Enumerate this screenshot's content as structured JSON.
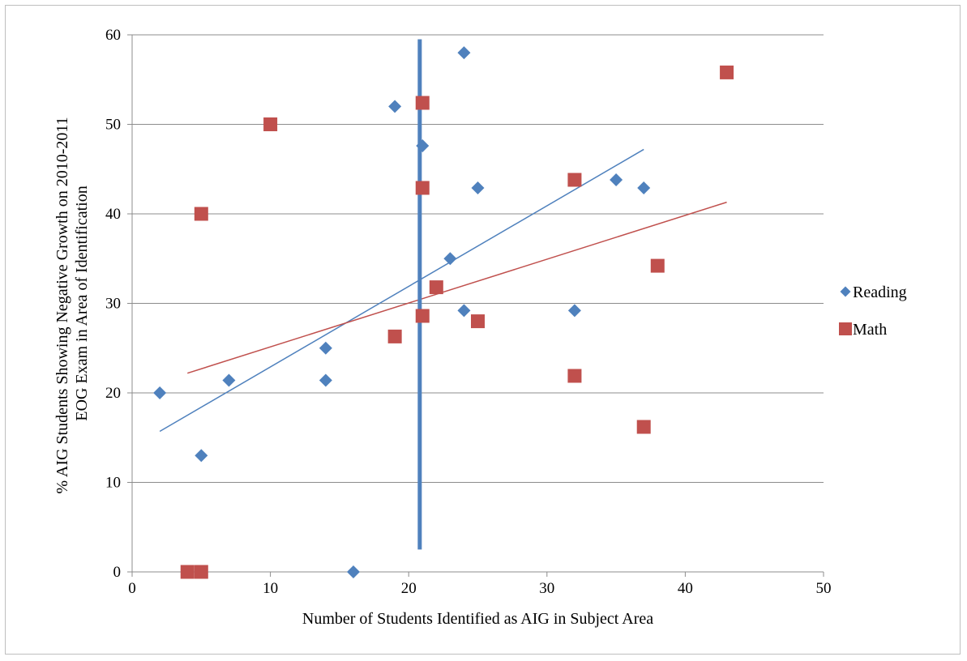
{
  "chart_data": {
    "type": "scatter",
    "xlabel": "Number of Students Identified as AIG in Subject Area",
    "ylabel": "% AIG Students Showing Negative Growth on 2010-2011 EOG Exam in Area of Identification",
    "ylabel_lines": [
      "% AIG Students Showing Negative Growth on 2010-2011",
      "EOG Exam in Area of Identification"
    ],
    "xlim": [
      0,
      50
    ],
    "ylim": [
      0,
      60
    ],
    "xticks": [
      0,
      10,
      20,
      30,
      40,
      50
    ],
    "yticks": [
      0,
      10,
      20,
      30,
      40,
      50,
      60
    ],
    "grid": "horizontal",
    "legend": "right",
    "series": [
      {
        "name": "Reading",
        "color": "#4f81bd",
        "marker": "diamond",
        "points": [
          [
            2,
            20
          ],
          [
            5,
            13
          ],
          [
            7,
            21.4
          ],
          [
            14,
            25
          ],
          [
            14,
            21.4
          ],
          [
            16,
            0
          ],
          [
            19,
            52
          ],
          [
            21,
            47.6
          ],
          [
            23,
            35
          ],
          [
            24,
            58
          ],
          [
            24,
            29.2
          ],
          [
            25,
            42.9
          ],
          [
            32,
            29.2
          ],
          [
            35,
            43.8
          ],
          [
            37,
            42.9
          ]
        ],
        "trendline": [
          [
            2,
            15.7
          ],
          [
            37,
            47.2
          ]
        ]
      },
      {
        "name": "Math",
        "color": "#c0504d",
        "marker": "square",
        "points": [
          [
            4,
            0
          ],
          [
            5,
            0
          ],
          [
            5,
            40
          ],
          [
            10,
            50
          ],
          [
            19,
            26.3
          ],
          [
            21,
            52.4
          ],
          [
            21,
            42.9
          ],
          [
            21,
            28.6
          ],
          [
            22,
            31.8
          ],
          [
            25,
            28
          ],
          [
            32,
            43.8
          ],
          [
            32,
            21.9
          ],
          [
            37,
            16.2
          ],
          [
            38,
            34.2
          ],
          [
            43,
            55.8
          ]
        ],
        "trendline": [
          [
            4,
            22.2
          ],
          [
            43,
            41.3
          ]
        ]
      }
    ],
    "annotations": [
      {
        "type": "vertical-line",
        "x": 20.8,
        "y_range": [
          2.5,
          59.5
        ],
        "color": "#4f81bd"
      }
    ]
  }
}
